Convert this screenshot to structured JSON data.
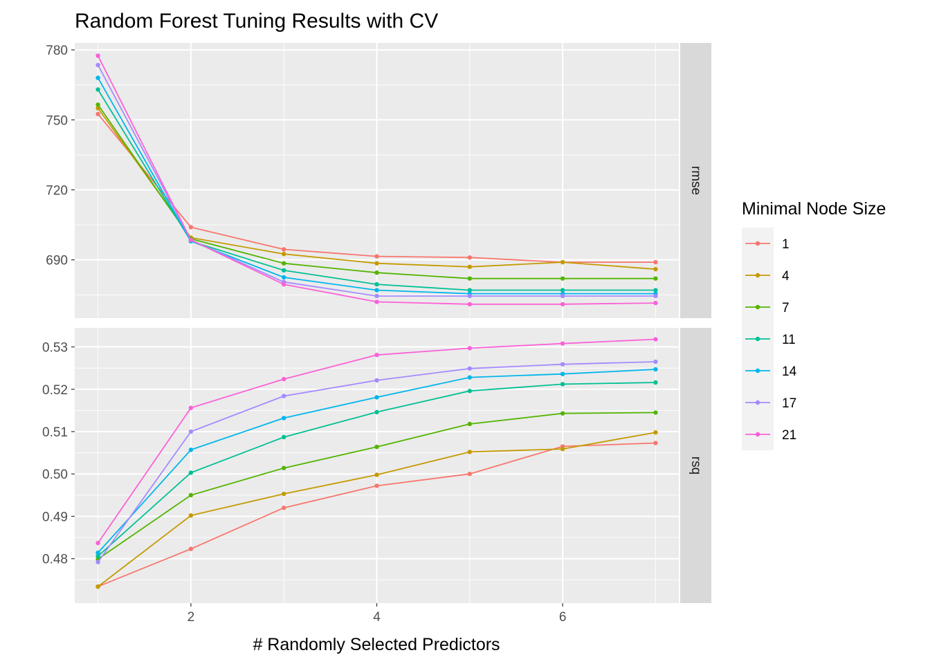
{
  "chart_data": {
    "type": "line",
    "title": "Random Forest Tuning Results with CV",
    "xlabel": "# Randomly Selected Predictors",
    "xlim": [
      0.75,
      7.25
    ],
    "x": [
      1,
      2,
      3,
      4,
      5,
      6,
      7
    ],
    "x_ticks": [
      2,
      4,
      6
    ],
    "legend": {
      "title": "Minimal Node Size",
      "position": "right"
    },
    "grid": true,
    "panels": [
      {
        "strip": "rmse",
        "ylim": [
          665,
          783
        ],
        "y_ticks": [
          690,
          720,
          750,
          780
        ],
        "series": [
          {
            "name": "1",
            "values": [
              752.5,
              704.0,
              694.5,
              691.5,
              691.0,
              689.0,
              689.0
            ]
          },
          {
            "name": "4",
            "values": [
              755.0,
              699.5,
              692.5,
              688.5,
              687.0,
              689.0,
              686.0
            ]
          },
          {
            "name": "7",
            "values": [
              756.5,
              699.0,
              688.5,
              684.5,
              682.0,
              682.0,
              682.0
            ]
          },
          {
            "name": "11",
            "values": [
              763.0,
              698.0,
              685.5,
              679.5,
              677.0,
              677.0,
              677.0
            ]
          },
          {
            "name": "14",
            "values": [
              768.0,
              698.0,
              682.5,
              677.0,
              675.5,
              675.5,
              675.5
            ]
          },
          {
            "name": "17",
            "values": [
              773.5,
              698.5,
              680.5,
              674.5,
              674.5,
              674.5,
              674.5
            ]
          },
          {
            "name": "21",
            "values": [
              777.5,
              698.5,
              679.5,
              672.0,
              671.0,
              671.0,
              671.5
            ]
          }
        ]
      },
      {
        "strip": "rsq",
        "ylim": [
          0.4695,
          0.5345
        ],
        "y_ticks": [
          0.48,
          0.49,
          0.5,
          0.51,
          0.52,
          0.53
        ],
        "y_tick_labels": [
          "0.48",
          "0.49",
          "0.50",
          "0.51",
          "0.52",
          "0.53"
        ],
        "series": [
          {
            "name": "1",
            "values": [
              0.4734,
              0.4823,
              0.492,
              0.4972,
              0.5,
              0.5065,
              0.5073
            ]
          },
          {
            "name": "4",
            "values": [
              0.4734,
              0.4902,
              0.4953,
              0.4998,
              0.5052,
              0.5059,
              0.5098
            ]
          },
          {
            "name": "7",
            "values": [
              0.4799,
              0.495,
              0.5014,
              0.5064,
              0.5118,
              0.5143,
              0.5145
            ]
          },
          {
            "name": "11",
            "values": [
              0.4806,
              0.5003,
              0.5087,
              0.5146,
              0.5196,
              0.5212,
              0.5216
            ]
          },
          {
            "name": "14",
            "values": [
              0.4814,
              0.5057,
              0.5132,
              0.5181,
              0.5228,
              0.5236,
              0.5247
            ]
          },
          {
            "name": "17",
            "values": [
              0.4792,
              0.51,
              0.5184,
              0.5221,
              0.5249,
              0.5259,
              0.5265
            ]
          },
          {
            "name": "21",
            "values": [
              0.4837,
              0.5156,
              0.5224,
              0.5281,
              0.5297,
              0.5308,
              0.5318
            ]
          }
        ]
      }
    ]
  },
  "colors": {
    "1": "#F8766D",
    "4": "#C49A00",
    "7": "#53B400",
    "11": "#00C094",
    "14": "#00B6EB",
    "17": "#A58AFF",
    "21": "#FB61D7"
  }
}
